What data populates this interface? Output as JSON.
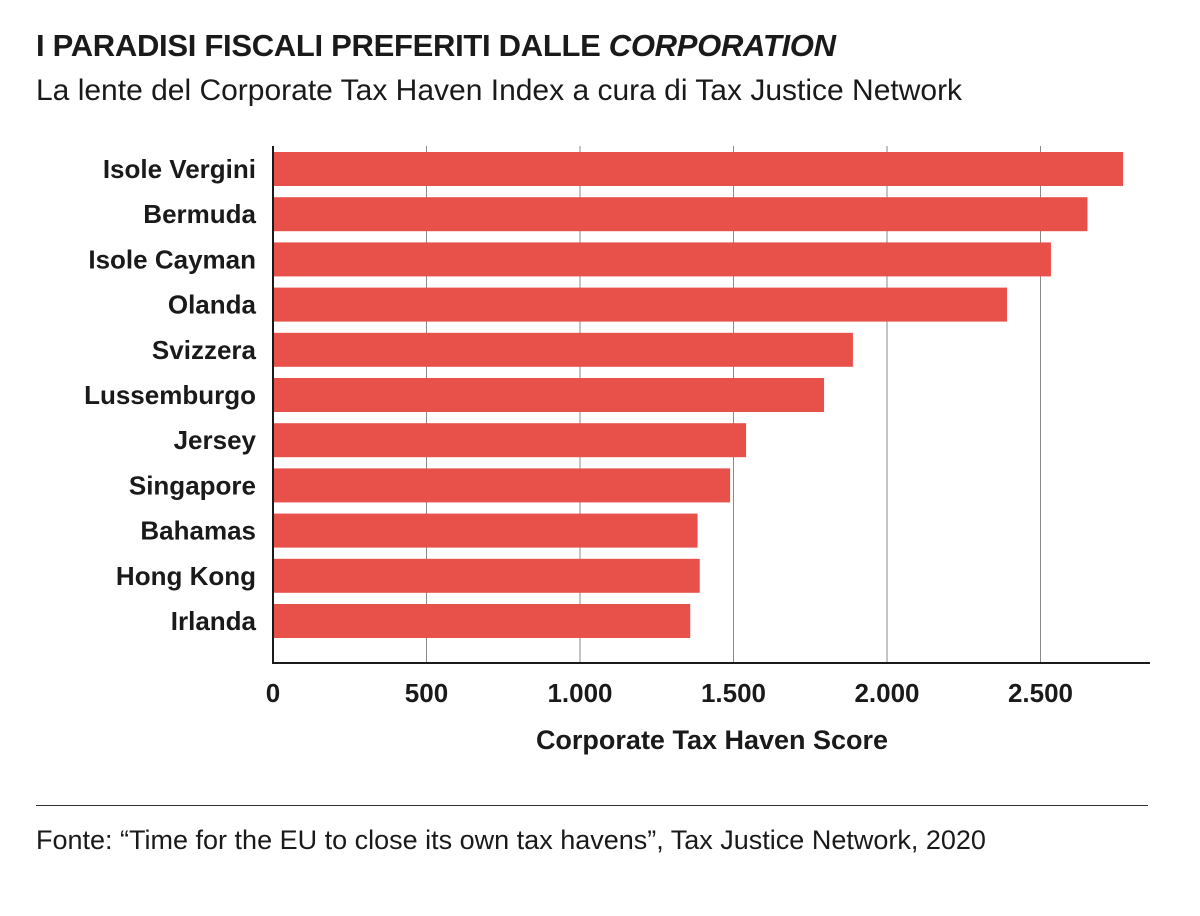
{
  "header": {
    "title_main": "I PARADISI FISCALI PREFERITI DALLE ",
    "title_italic": "CORPORATION",
    "subtitle": "La lente del Corporate Tax Haven Index a cura di Tax Justice Network"
  },
  "footer": {
    "source": "Fonte: “Time for the EU to close its own tax havens”, Tax Justice Network, 2020"
  },
  "chart_data": {
    "type": "bar",
    "orientation": "horizontal",
    "categories": [
      "Isole Vergini",
      "Bermuda",
      "Isole Cayman",
      "Olanda",
      "Svizzera",
      "Lussemburgo",
      "Jersey",
      "Singapore",
      "Bahamas",
      "Hong Kong",
      "Irlanda"
    ],
    "values": [
      2769,
      2653,
      2534,
      2391,
      1889,
      1795,
      1541,
      1489,
      1383,
      1390,
      1359
    ],
    "xlabel": "Corporate Tax Haven Score",
    "xlim": [
      0,
      2870
    ],
    "xticks": [
      0,
      500,
      1000,
      1500,
      2000,
      2500
    ],
    "xtick_labels": [
      "0",
      "500",
      "1.000",
      "1.500",
      "2.000",
      "2.500"
    ],
    "grid": "vertical",
    "bar_color": "#e8504a"
  }
}
